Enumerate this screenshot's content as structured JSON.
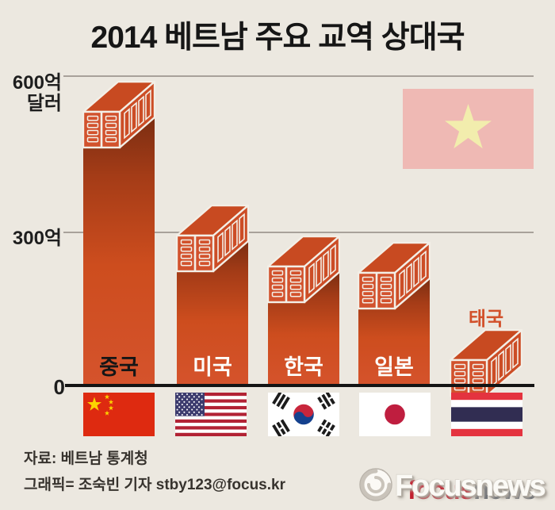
{
  "title": "2014 베트남 주요 교역 상대국",
  "y_axis": {
    "label_600": "600억",
    "unit": "달러",
    "label_300": "300억",
    "label_0": "0"
  },
  "chart_data": {
    "type": "bar",
    "title": "2014 베트남 주요 교역 상대국",
    "ylabel": "억 달러",
    "categories": [
      "중국",
      "미국",
      "한국",
      "일본",
      "태국"
    ],
    "values": [
      590,
      350,
      290,
      277,
      108
    ],
    "ylim": [
      0,
      620
    ],
    "yticks": [
      0,
      300,
      600
    ],
    "grid": "horizontal",
    "legend_position": "none",
    "bar_style": "3d-shipping-container",
    "note": "values in 억 달러, estimated from gridlines"
  },
  "bars": [
    {
      "id": "china",
      "label": "중국",
      "flag": "china",
      "label_style": "dark"
    },
    {
      "id": "usa",
      "label": "미국",
      "flag": "usa",
      "label_style": "light"
    },
    {
      "id": "korea",
      "label": "한국",
      "flag": "korea",
      "label_style": "light"
    },
    {
      "id": "japan",
      "label": "일본",
      "flag": "japan",
      "label_style": "light"
    },
    {
      "id": "thailand",
      "label": "태국",
      "flag": "thailand",
      "label_style": "accent"
    }
  ],
  "watermark": {
    "flag": "vietnam"
  },
  "footer": {
    "source": "자료: 베트남 통계청",
    "credit": "그래픽= 조숙빈 기자 stby123@focus.kr"
  },
  "logo": {
    "front": "Focusnews",
    "back_red": "focus",
    "back_gray": "news"
  },
  "colors": {
    "background": "#ece8e0",
    "container_front": "#d2522d",
    "container_top": "#c84a21",
    "container_side": "#cc4d26",
    "container_outline": "#f3efe7",
    "accent": "#d2502a",
    "gridline": "#a8a19a",
    "baseline": "#141414",
    "china_red": "#de2a10",
    "china_yellow": "#fcd500",
    "us_red": "#b22234",
    "us_blue": "#3c3b6e",
    "kr_red": "#c8263c",
    "kr_blue": "#15418e",
    "jp_red": "#bf1e3f",
    "th_red": "#e4333f",
    "th_blue": "#312d52",
    "vn_faded_red": "#efb9b4",
    "vn_faded_yellow": "#f2edad"
  }
}
